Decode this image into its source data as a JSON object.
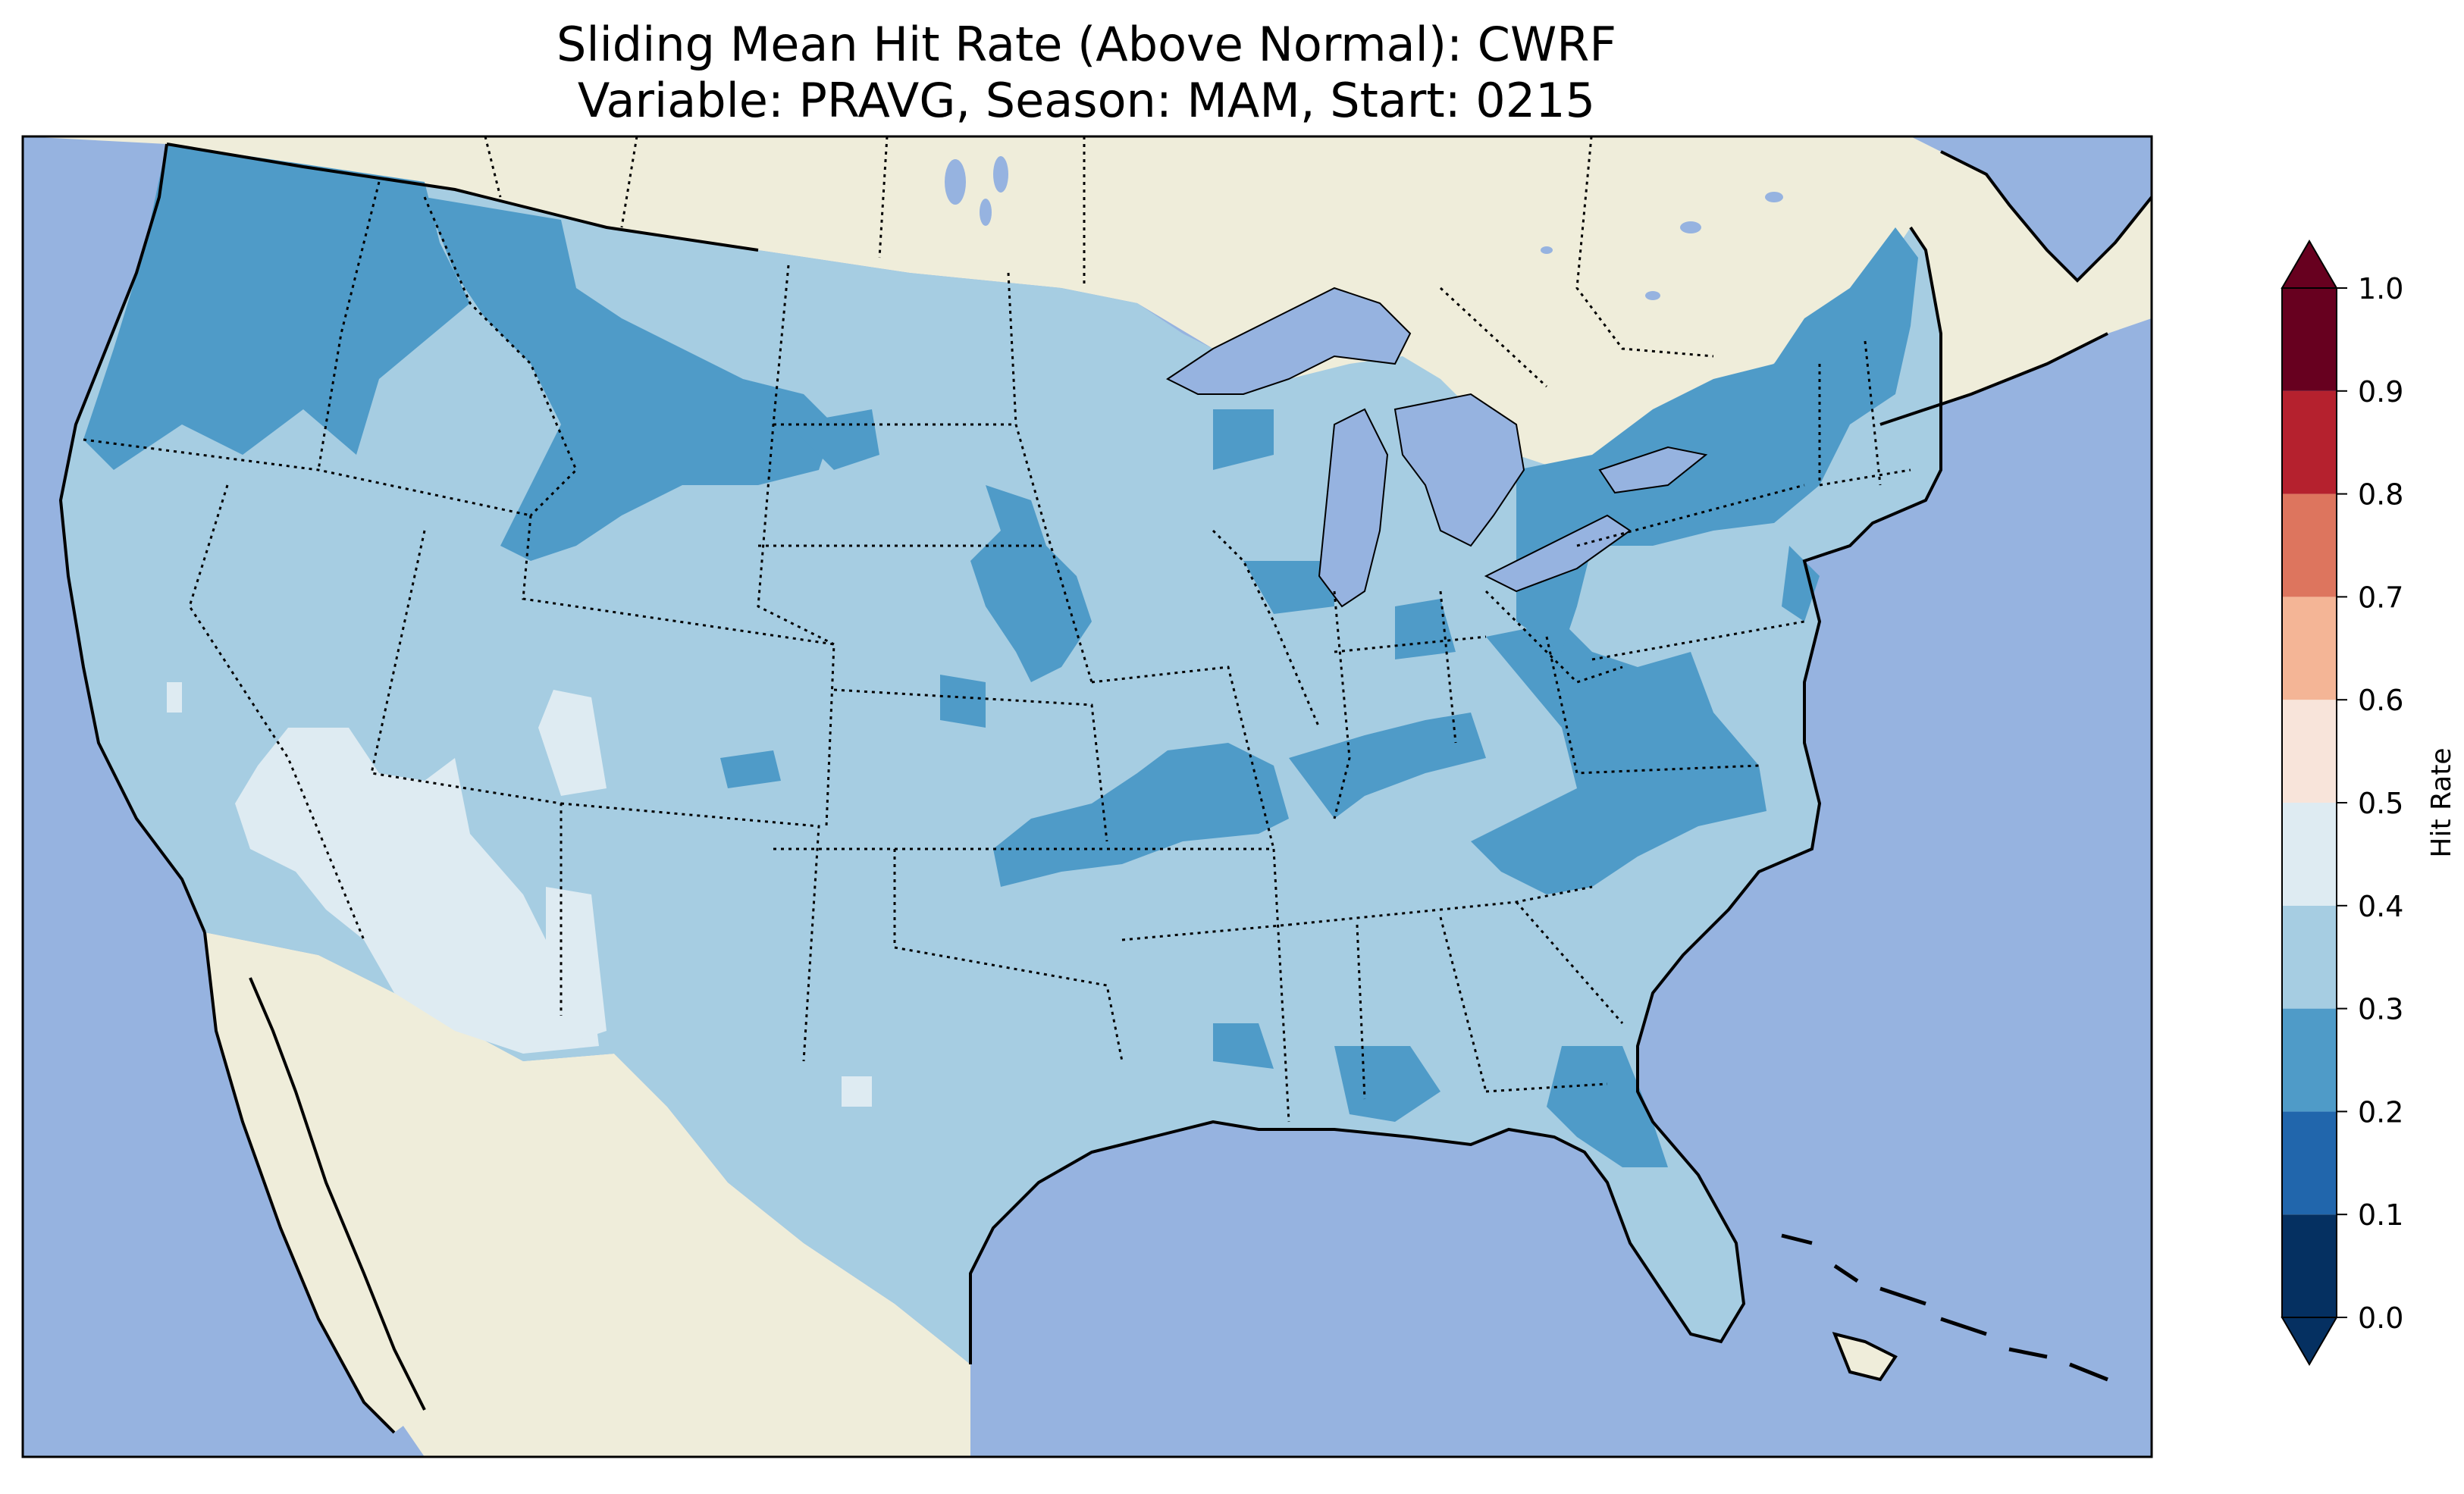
{
  "figure": {
    "title_line1": "Sliding Mean Hit Rate (Above Normal): CWRF",
    "title_line2": "Variable: PRAVG, Season: MAM, Start: 0215"
  },
  "colorbar": {
    "label": "Hit Rate",
    "ticks": [
      "0.0",
      "0.1",
      "0.2",
      "0.3",
      "0.4",
      "0.5",
      "0.6",
      "0.7",
      "0.8",
      "0.9",
      "1.0"
    ],
    "bins": [
      {
        "range": [
          0.0,
          0.1
        ],
        "color": "#053061"
      },
      {
        "range": [
          0.1,
          0.2
        ],
        "color": "#2166ac"
      },
      {
        "range": [
          0.2,
          0.3
        ],
        "color": "#4f9bc8"
      },
      {
        "range": [
          0.3,
          0.4
        ],
        "color": "#a6cde2"
      },
      {
        "range": [
          0.4,
          0.5
        ],
        "color": "#deebf2"
      },
      {
        "range": [
          0.5,
          0.6
        ],
        "color": "#f8e4da"
      },
      {
        "range": [
          0.6,
          0.7
        ],
        "color": "#f4b596"
      },
      {
        "range": [
          0.7,
          0.8
        ],
        "color": "#dd755e"
      },
      {
        "range": [
          0.8,
          0.9
        ],
        "color": "#b5212e"
      },
      {
        "range": [
          0.9,
          1.0
        ],
        "color": "#67001f"
      }
    ],
    "extend": "both"
  },
  "map": {
    "ocean_color": "#96b3e0",
    "land_color": "#efedda",
    "lake_color": "#96b3e0",
    "region": "Contiguous United States",
    "dominant_hit_rate_bin": [
      0.3,
      0.4
    ]
  }
}
